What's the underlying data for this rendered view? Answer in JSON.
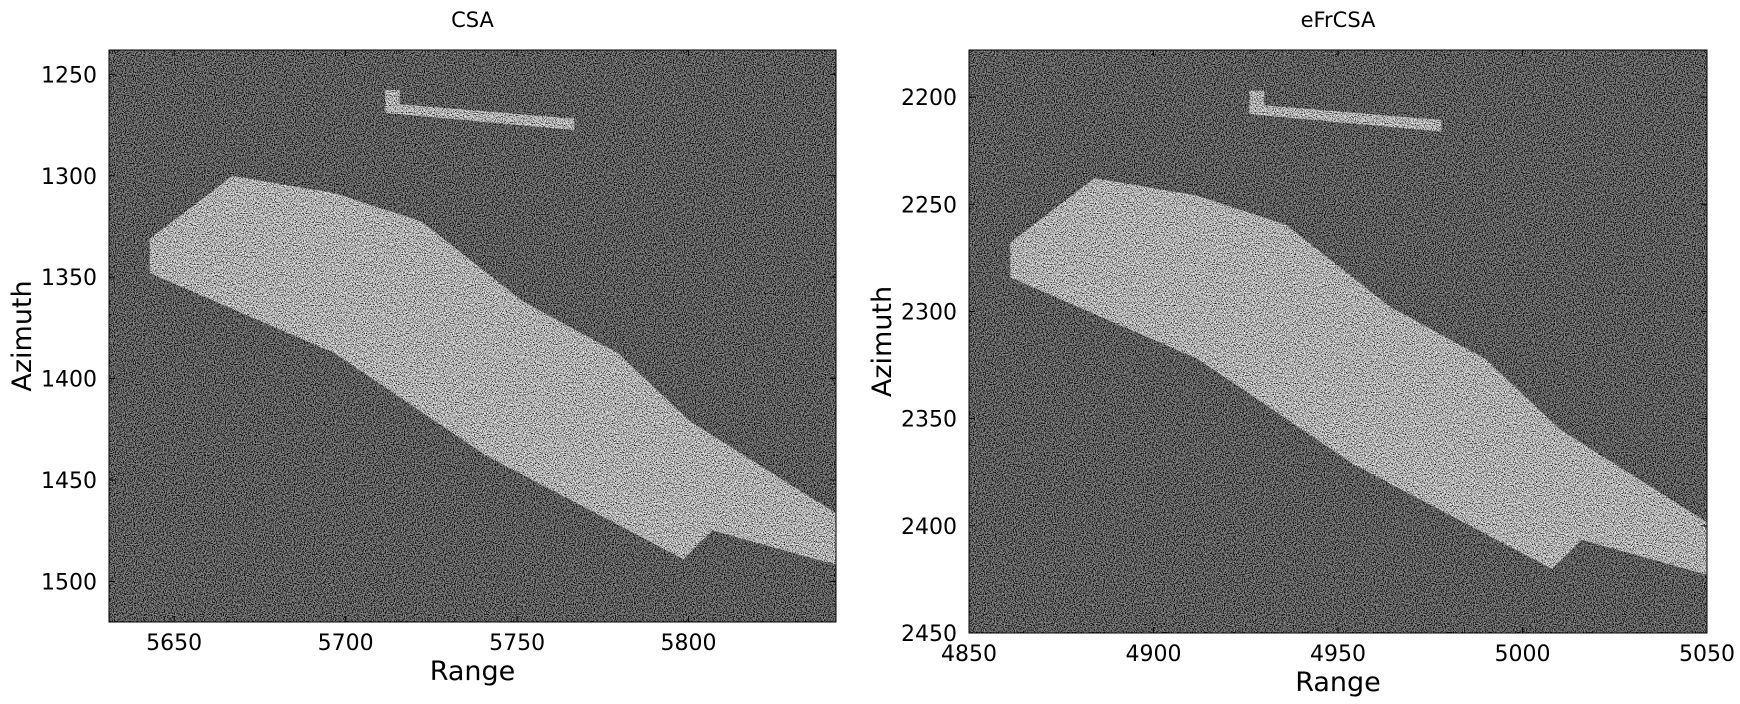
{
  "chart_data": [
    {
      "type": "image",
      "title": "CSA",
      "xlabel": "Range",
      "ylabel": "Azimuth",
      "colormap": "gray",
      "xlim": [
        5631,
        5843
      ],
      "ylim": [
        1238,
        1520
      ],
      "y_inverted": true,
      "xticks": [
        5650,
        5700,
        5750,
        5800
      ],
      "yticks": [
        1250,
        1300,
        1350,
        1400,
        1450,
        1500
      ]
    },
    {
      "type": "image",
      "title": "eFrCSA",
      "xlabel": "Range",
      "ylabel": "Azimuth",
      "colormap": "gray",
      "xlim": [
        4850,
        5050
      ],
      "ylim": [
        2178,
        2450
      ],
      "y_inverted": true,
      "xticks": [
        4850,
        4900,
        4950,
        5000,
        5050
      ],
      "yticks": [
        2200,
        2250,
        2300,
        2350,
        2400,
        2450
      ]
    }
  ]
}
